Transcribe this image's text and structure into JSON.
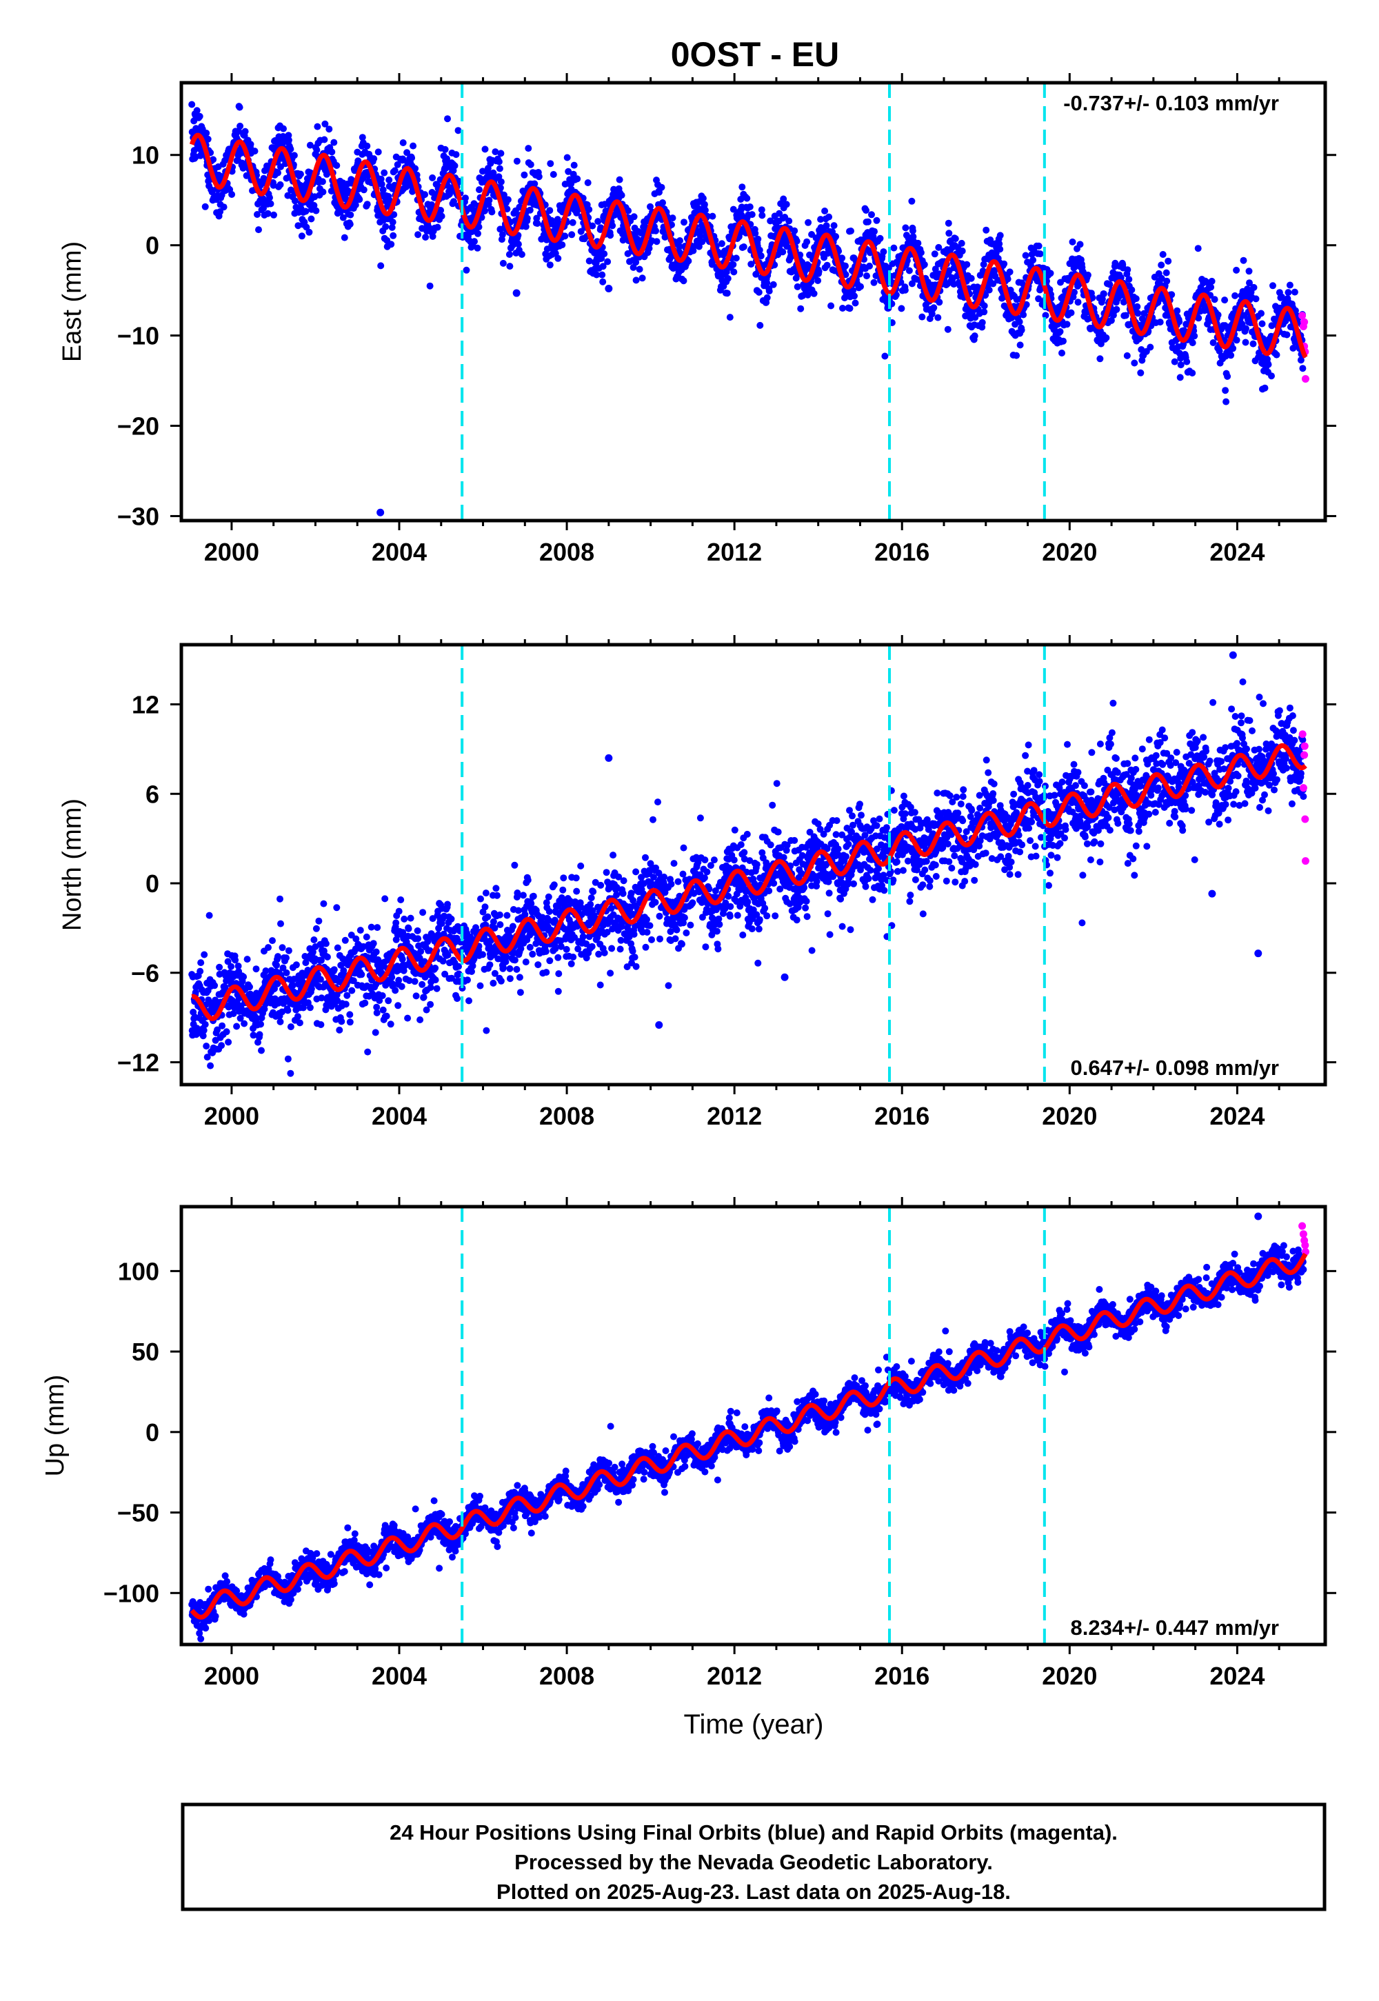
{
  "figure": {
    "title": "0OST - EU",
    "xlabel": "Time (year)",
    "footer_lines": [
      "24 Hour Positions Using Final Orbits (blue) and Rapid Orbits (magenta).",
      "Processed by the Nevada Geodetic Laboratory.",
      "Plotted on 2025-Aug-23. Last data on 2025-Aug-18."
    ]
  },
  "colors": {
    "final_orbits": "#0000ff",
    "rapid_orbits": "#ff00ff",
    "model_fit": "#ff0000",
    "event_lines": "#00e5ee",
    "axes": "#000000"
  },
  "chart_data": [
    {
      "type": "scatter",
      "component": "East",
      "ylabel": "East (mm)",
      "xlim": [
        1998.8,
        2026.1
      ],
      "ylim": [
        -30.5,
        18.0
      ],
      "xticks": [
        2000,
        2004,
        2008,
        2012,
        2016,
        2020,
        2024
      ],
      "yticks": [
        -30,
        -20,
        -10,
        0,
        10
      ],
      "ytick_labels": [
        "−30",
        "−20",
        "−10",
        "0",
        "10"
      ],
      "rate_text": "-0.737+/- 0.103 mm/yr",
      "rate_position": "top-right",
      "fit": {
        "start_year": 1999.05,
        "end_year": 2025.63,
        "intercept": 9.6,
        "slope": -0.737,
        "annual_amplitude": 2.7,
        "annual_phase": 0.3,
        "noise": 1.6
      },
      "event_lines": [
        2005.5,
        2015.7,
        2019.4
      ],
      "outliers": [
        {
          "x": 2003.55,
          "y": -29.6
        },
        {
          "x": 2006.8,
          "y": -5.3
        },
        {
          "x": 2009.0,
          "y": -4.8
        }
      ],
      "rapid_points": [
        {
          "x": 2025.55,
          "y": -7.8
        },
        {
          "x": 2025.58,
          "y": -9.0
        },
        {
          "x": 2025.6,
          "y": -11.2
        },
        {
          "x": 2025.62,
          "y": -11.8
        },
        {
          "x": 2025.63,
          "y": -14.8
        },
        {
          "x": 2025.6,
          "y": -8.5
        }
      ]
    },
    {
      "type": "scatter",
      "component": "North",
      "ylabel": "North (mm)",
      "xlim": [
        1998.8,
        2026.1
      ],
      "ylim": [
        -13.5,
        16.0
      ],
      "xticks": [
        2000,
        2004,
        2008,
        2012,
        2016,
        2020,
        2024
      ],
      "yticks": [
        -12,
        -6,
        0,
        6,
        12
      ],
      "ytick_labels": [
        "−12",
        "−6",
        "0",
        "6",
        "12"
      ],
      "rate_text": "0.647+/- 0.098 mm/yr",
      "rate_position": "bottom-right",
      "fit": {
        "start_year": 1999.05,
        "end_year": 2025.63,
        "intercept": -8.5,
        "slope": 0.647,
        "annual_amplitude": 0.9,
        "annual_phase": 1.2,
        "noise": 1.3
      },
      "event_lines": [
        2005.5,
        2015.7,
        2019.4
      ],
      "outliers": [
        {
          "x": 2009.0,
          "y": 8.4
        },
        {
          "x": 2010.2,
          "y": -9.5
        },
        {
          "x": 2023.9,
          "y": 15.3
        },
        {
          "x": 2023.4,
          "y": -0.7
        },
        {
          "x": 2024.5,
          "y": -4.7
        },
        {
          "x": 2013.2,
          "y": -6.3
        }
      ],
      "rapid_points": [
        {
          "x": 2025.56,
          "y": 10.0
        },
        {
          "x": 2025.6,
          "y": 8.6
        },
        {
          "x": 2025.58,
          "y": 6.4
        },
        {
          "x": 2025.62,
          "y": 4.3
        },
        {
          "x": 2025.63,
          "y": 1.5
        },
        {
          "x": 2025.61,
          "y": 9.2
        }
      ]
    },
    {
      "type": "scatter",
      "component": "Up",
      "ylabel": "Up (mm)",
      "xlim": [
        1998.8,
        2026.1
      ],
      "ylim": [
        -132.0,
        140.0
      ],
      "xticks": [
        2000,
        2004,
        2008,
        2012,
        2016,
        2020,
        2024
      ],
      "yticks": [
        -100,
        -50,
        0,
        50,
        100
      ],
      "ytick_labels": [
        "−100",
        "−50",
        "0",
        "50",
        "100"
      ],
      "rate_text": "8.234+/- 0.447 mm/yr",
      "rate_position": "bottom-right",
      "fit": {
        "start_year": 1999.05,
        "end_year": 2025.63,
        "intercept": -111.0,
        "slope": 8.234,
        "annual_amplitude": 6.0,
        "annual_phase": 2.8,
        "noise": 4.2
      },
      "event_lines": [
        2005.5,
        2015.7,
        2019.4
      ],
      "outliers": [
        {
          "x": 2024.5,
          "y": 134.0
        }
      ],
      "rapid_points": [
        {
          "x": 2025.55,
          "y": 128.0
        },
        {
          "x": 2025.58,
          "y": 123.0
        },
        {
          "x": 2025.6,
          "y": 119.0
        },
        {
          "x": 2025.62,
          "y": 116.0
        },
        {
          "x": 2025.63,
          "y": 112.0
        }
      ]
    }
  ]
}
